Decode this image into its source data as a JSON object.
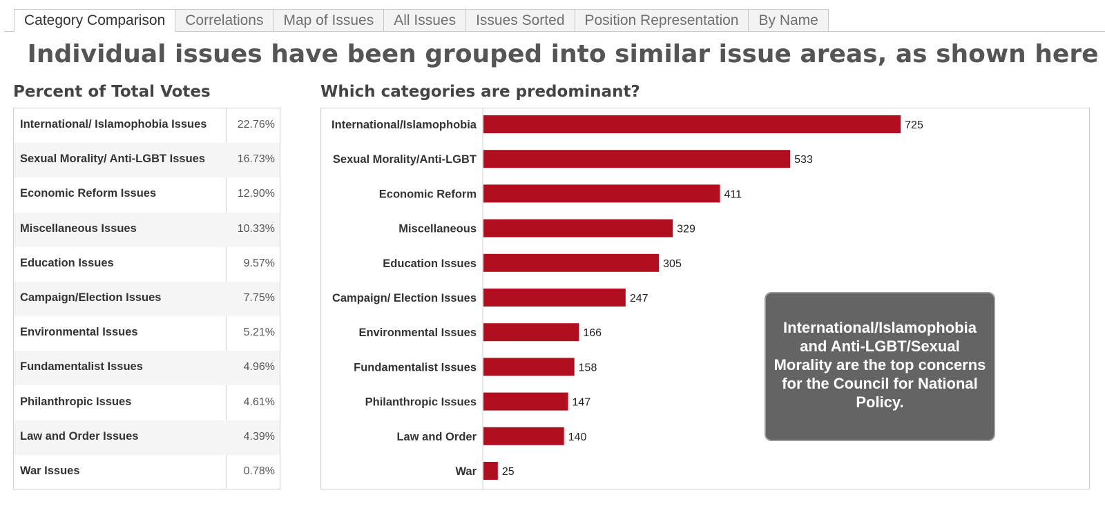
{
  "tabs": [
    {
      "label": "Category Comparison",
      "active": true
    },
    {
      "label": "Correlations",
      "active": false
    },
    {
      "label": "Map of Issues",
      "active": false
    },
    {
      "label": "All Issues",
      "active": false
    },
    {
      "label": "Issues Sorted",
      "active": false
    },
    {
      "label": "Position Representation",
      "active": false
    },
    {
      "label": "By Name",
      "active": false
    }
  ],
  "page_title": "Individual issues have been grouped into similar issue areas, as shown here",
  "table": {
    "title": "Percent of Total Votes",
    "rows": [
      {
        "name": "International/ Islamophobia Issues",
        "pct": "22.76%"
      },
      {
        "name": "Sexual Morality/ Anti-LGBT Issues",
        "pct": "16.73%"
      },
      {
        "name": "Economic Reform Issues",
        "pct": "12.90%"
      },
      {
        "name": "Miscellaneous Issues",
        "pct": "10.33%"
      },
      {
        "name": "Education Issues",
        "pct": "9.57%"
      },
      {
        "name": "Campaign/Election Issues",
        "pct": "7.75%"
      },
      {
        "name": "Environmental Issues",
        "pct": "5.21%"
      },
      {
        "name": "Fundamentalist Issues",
        "pct": "4.96%"
      },
      {
        "name": "Philanthropic Issues",
        "pct": "4.61%"
      },
      {
        "name": "Law and Order Issues",
        "pct": "4.39%"
      },
      {
        "name": "War Issues",
        "pct": "0.78%"
      }
    ]
  },
  "chart_data": {
    "type": "bar",
    "orientation": "horizontal",
    "title": "Which categories are predominant?",
    "categories": [
      "International/Islamophobia",
      "Sexual Morality/Anti-LGBT",
      "Economic Reform",
      "Miscellaneous",
      "Education Issues",
      "Campaign/ Election Issues",
      "Environmental Issues",
      "Fundamentalist Issues",
      "Philanthropic Issues",
      "Law and Order",
      "War"
    ],
    "values": [
      725,
      533,
      411,
      329,
      305,
      247,
      166,
      158,
      147,
      140,
      25
    ],
    "data_labels": true,
    "bar_color": "#b10f1f",
    "grid": false,
    "xlim": [
      0,
      1050
    ]
  },
  "callout": {
    "text": "International/Islamophobia and Anti-LGBT/Sexual Morality are the top concerns for the Council for National Policy."
  },
  "colors": {
    "bar": "#b10f1f",
    "callout_bg": "#646464",
    "title_text": "#555555"
  }
}
